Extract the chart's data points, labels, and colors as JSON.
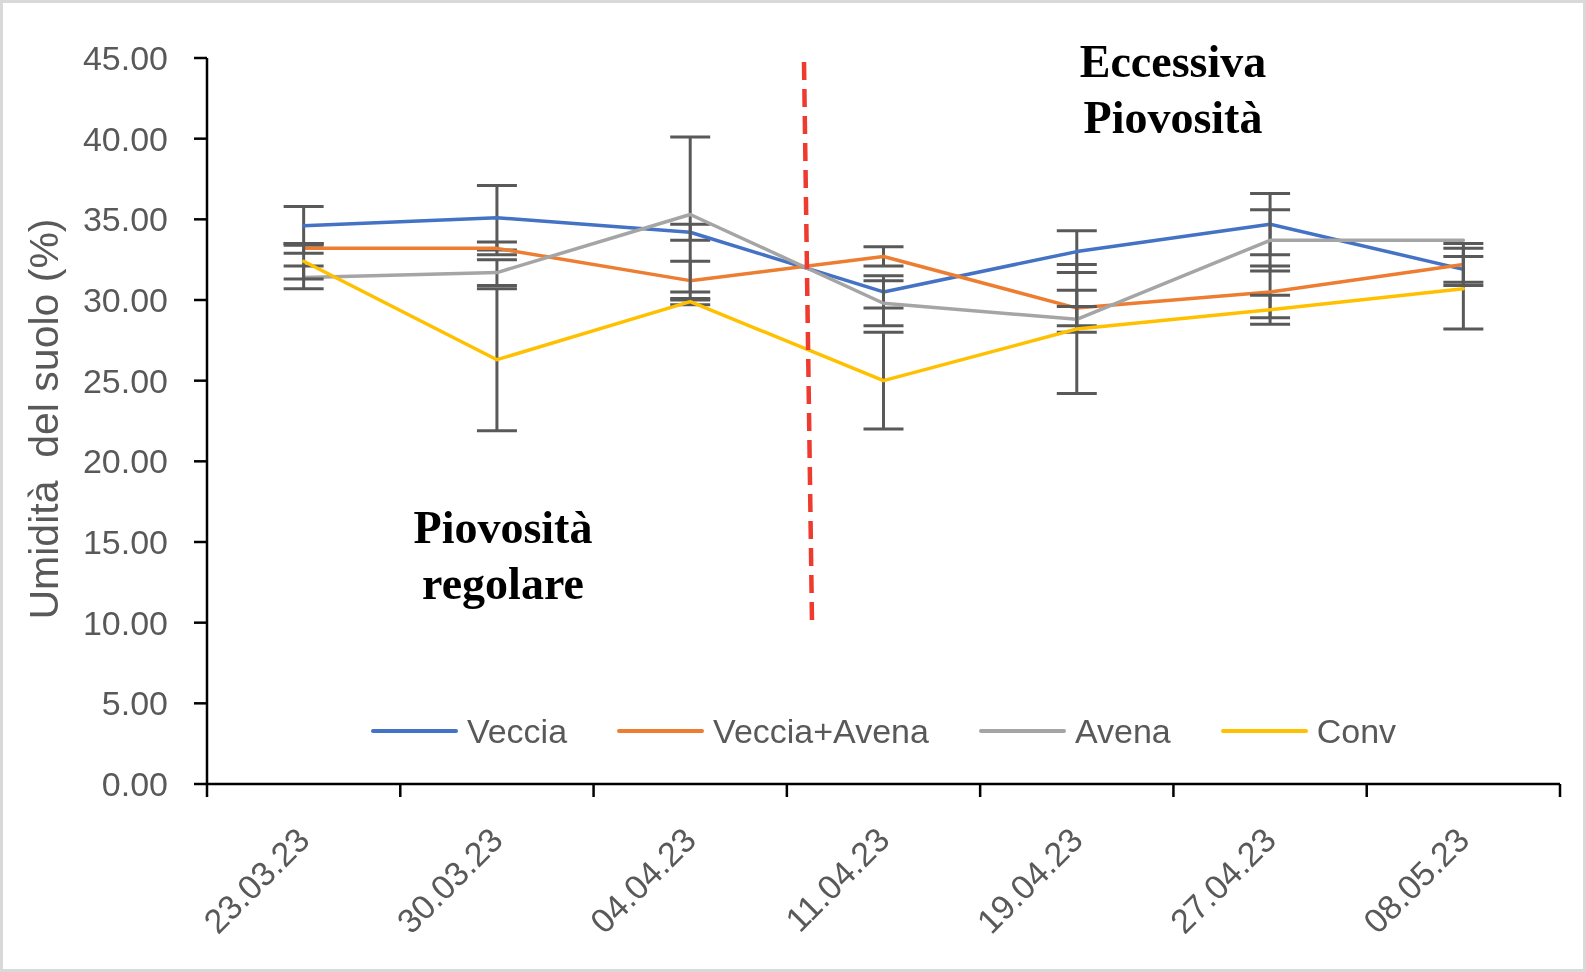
{
  "chart_data": {
    "type": "line",
    "categories": [
      "23.03.23",
      "30.03.23",
      "04.04.23",
      "11.04.23",
      "19.04.23",
      "27.04.23",
      "08.05.23"
    ],
    "ylabel": "Umidità  del suolo (%)",
    "annotations": [
      "Eccessiva\nPiovosità",
      "Piovosità\nregolare"
    ],
    "series": [
      {
        "name": "Veccia",
        "color": "#4472c4",
        "values": [
          34.6,
          35.1,
          34.2,
          30.5,
          33.0,
          34.7,
          31.9
        ],
        "errors": [
          1.2,
          2.0,
          0.5,
          1.0,
          1.3,
          1.9,
          0.8
        ]
      },
      {
        "name": "Veccia+Avena",
        "color": "#ed7d31",
        "values": [
          33.2,
          33.2,
          31.2,
          32.7,
          29.5,
          30.5,
          32.2
        ],
        "errors": [
          0.3,
          0.4,
          1.2,
          0.6,
          1.1,
          1.6,
          1.3
        ]
      },
      {
        "name": "Avena",
        "color": "#a5a5a5",
        "values": [
          31.4,
          31.7,
          35.3,
          29.8,
          28.8,
          33.7,
          33.7
        ],
        "errors": [
          0.7,
          0.8,
          4.8,
          1.4,
          0.8,
          1.9,
          null
        ]
      },
      {
        "name": "Conv",
        "color": "#ffc000",
        "values": [
          32.4,
          26.3,
          29.9,
          25.0,
          28.2,
          29.4,
          30.7
        ],
        "errors": [
          1.1,
          4.4,
          0.2,
          3.0,
          4.0,
          0.9,
          2.5
        ]
      }
    ],
    "ylim": [
      0,
      45
    ],
    "yticks": [
      {
        "value": 0,
        "label": "0.00"
      },
      {
        "value": 5,
        "label": "5.00"
      },
      {
        "value": 10,
        "label": "10.00"
      },
      {
        "value": 15,
        "label": "15.00"
      },
      {
        "value": 20,
        "label": "20.00"
      },
      {
        "value": 25,
        "label": "25.00"
      },
      {
        "value": 30,
        "label": "30.00"
      },
      {
        "value": 35,
        "label": "35.00"
      },
      {
        "value": 40,
        "label": "40.00"
      },
      {
        "value": 45,
        "label": "45.00"
      }
    ],
    "legend": "bottom"
  }
}
